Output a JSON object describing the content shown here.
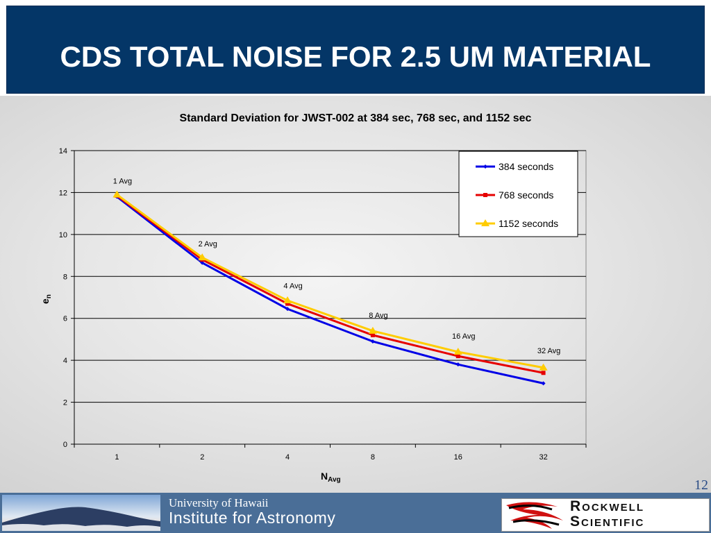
{
  "slide": {
    "title": "CDS TOTAL NOISE FOR 2.5 UM MATERIAL",
    "page_number": "12"
  },
  "footer": {
    "university": "University of Hawaii",
    "institute": "Institute for Astronomy",
    "logo_text_line1": "Rockwell",
    "logo_text_line2": "Scientific",
    "logo_icon": "rockwell-swirl-icon"
  },
  "chart_data": {
    "type": "line",
    "title": "Standard Deviation for JWST-002 at 384 sec, 768 sec, and 1152 sec",
    "xlabel_main": "N",
    "xlabel_sub": "Avg",
    "ylabel_main": "e",
    "ylabel_sub": "n",
    "categories": [
      "1",
      "2",
      "4",
      "8",
      "16",
      "32"
    ],
    "ylim": [
      0,
      14
    ],
    "yticks": [
      0,
      2,
      4,
      6,
      8,
      10,
      12,
      14
    ],
    "grid": true,
    "legend_position": "top-right",
    "annotations": [
      "1 Avg",
      "2 Avg",
      "4 Avg",
      "8 Avg",
      "16 Avg",
      "32 Avg"
    ],
    "annotation_anchor_values": [
      11.9,
      8.9,
      6.9,
      5.5,
      4.5,
      3.8
    ],
    "series": [
      {
        "name": "384 seconds",
        "color": "#0000e6",
        "marker": "diamond",
        "values": [
          11.8,
          8.65,
          6.45,
          4.9,
          3.8,
          2.9
        ]
      },
      {
        "name": "768 seconds",
        "color": "#e60000",
        "marker": "square",
        "values": [
          11.85,
          8.8,
          6.7,
          5.2,
          4.2,
          3.4
        ]
      },
      {
        "name": "1152 seconds",
        "color": "#ffcc00",
        "marker": "triangle",
        "values": [
          11.9,
          8.9,
          6.85,
          5.4,
          4.4,
          3.65
        ]
      }
    ]
  }
}
